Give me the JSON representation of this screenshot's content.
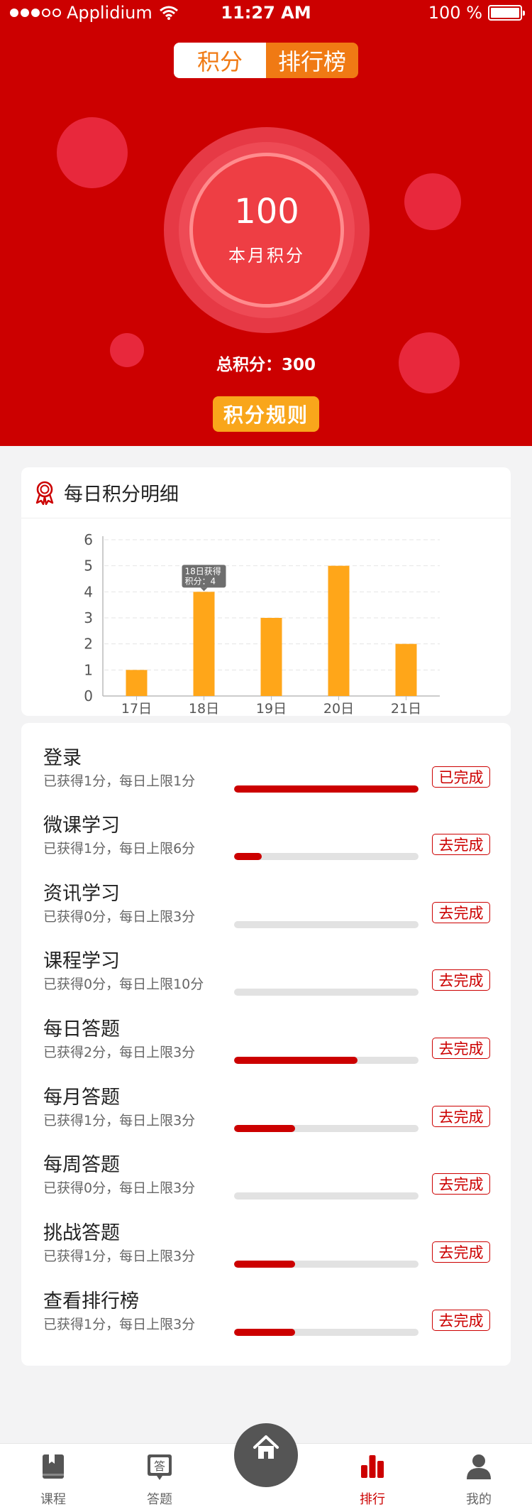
{
  "status_bar": {
    "carrier": "Applidium",
    "time": "11:27 AM",
    "battery": "100 %"
  },
  "segmented": {
    "tab1": "积分",
    "tab2": "排行榜"
  },
  "summary": {
    "month_points": "100",
    "month_label": "本月积分",
    "total_text": "总积分：300",
    "rules_button": "积分规则"
  },
  "card": {
    "title": "每日积分明细"
  },
  "chart_data": {
    "type": "bar",
    "categories": [
      "17日",
      "18日",
      "19日",
      "20日",
      "21日"
    ],
    "values": [
      1,
      4,
      3,
      5,
      2
    ],
    "ylim": [
      0,
      6
    ],
    "yticks": [
      0,
      1,
      2,
      3,
      4,
      5,
      6
    ],
    "grid": true,
    "bar_color": "#ffa619",
    "tooltip": {
      "category_index": 1,
      "line1": "18日获得",
      "line2": "积分：4"
    }
  },
  "tasks": [
    {
      "name": "登录",
      "desc": "已获得1分，每日上限1分",
      "progress": 1.0,
      "button": "已完成"
    },
    {
      "name": "微课学习",
      "desc": "已获得1分，每日上限6分",
      "progress": 0.15,
      "button": "去完成"
    },
    {
      "name": "资讯学习",
      "desc": "已获得0分，每日上限3分",
      "progress": 0,
      "button": "去完成"
    },
    {
      "name": "课程学习",
      "desc": "已获得0分，每日上限10分",
      "progress": 0,
      "button": "去完成"
    },
    {
      "name": "每日答题",
      "desc": "已获得2分，每日上限3分",
      "progress": 0.67,
      "button": "去完成"
    },
    {
      "name": "每月答题",
      "desc": "已获得1分，每日上限3分",
      "progress": 0.33,
      "button": "去完成"
    },
    {
      "name": "每周答题",
      "desc": "已获得0分，每日上限3分",
      "progress": 0,
      "button": "去完成"
    },
    {
      "name": "挑战答题",
      "desc": "已获得1分，每日上限3分",
      "progress": 0.33,
      "button": "去完成"
    },
    {
      "name": "查看排行榜",
      "desc": "已获得1分，每日上限3分",
      "progress": 0.33,
      "button": "去完成"
    }
  ],
  "tabbar": [
    {
      "label": "课程",
      "icon": "book-icon",
      "active": false
    },
    {
      "label": "答题",
      "icon": "quiz-icon",
      "icon_text": "答",
      "active": false
    },
    {
      "label": "首页",
      "icon": "home-icon",
      "active": false
    },
    {
      "label": "排行",
      "icon": "ranking-icon",
      "active": true
    },
    {
      "label": "我的",
      "icon": "user-icon",
      "active": false
    }
  ],
  "colors": {
    "primary": "#cc0000",
    "orange": "#f07a14",
    "yellow": "#f9a61b"
  }
}
